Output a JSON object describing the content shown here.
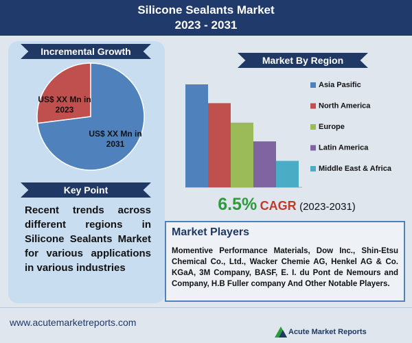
{
  "header": {
    "title": [
      "Silicone Sealants Market",
      "2023 - 2031"
    ]
  },
  "sections": {
    "incremental_growth": "Incremental Growth",
    "key_point": "Key Point",
    "market_by_region": "Market By Region"
  },
  "key_point": "Recent trends across different regions in Silicone Sealants Market for various applications in various industries",
  "cagr": {
    "value": "6.5%",
    "label": "CAGR",
    "period": "(2023-2031)"
  },
  "market_players": {
    "title": "Market Players",
    "text": "Momentive Performance Materials, Dow Inc., Shin-Etsu Chemical Co., Ltd., Wacker Chemie AG, Henkel AG & Co. KGaA, 3M Company, BASF, E. I. du Pont de Nemours and Company, H.B Fuller company And Other Notable Players."
  },
  "footer": {
    "url": "www.acutemarketreports.com",
    "logo": "Acute Market Reports"
  },
  "chart_data": [
    {
      "type": "pie",
      "categories": [
        "US$ XX Mn in 2023",
        "US$ XX Mn in 2031"
      ],
      "values": [
        27,
        73
      ],
      "colors": [
        "#c0504d",
        "#4f81bd"
      ]
    },
    {
      "type": "bar",
      "categories": [
        "Asia Pasific",
        "North America",
        "Europe",
        "Latin America",
        "Middle East & Africa"
      ],
      "values": [
        148,
        121,
        93,
        66,
        38
      ],
      "colors": [
        "#4f81bd",
        "#c0504d",
        "#9bbb59",
        "#8064a2",
        "#4bacc6"
      ]
    }
  ]
}
